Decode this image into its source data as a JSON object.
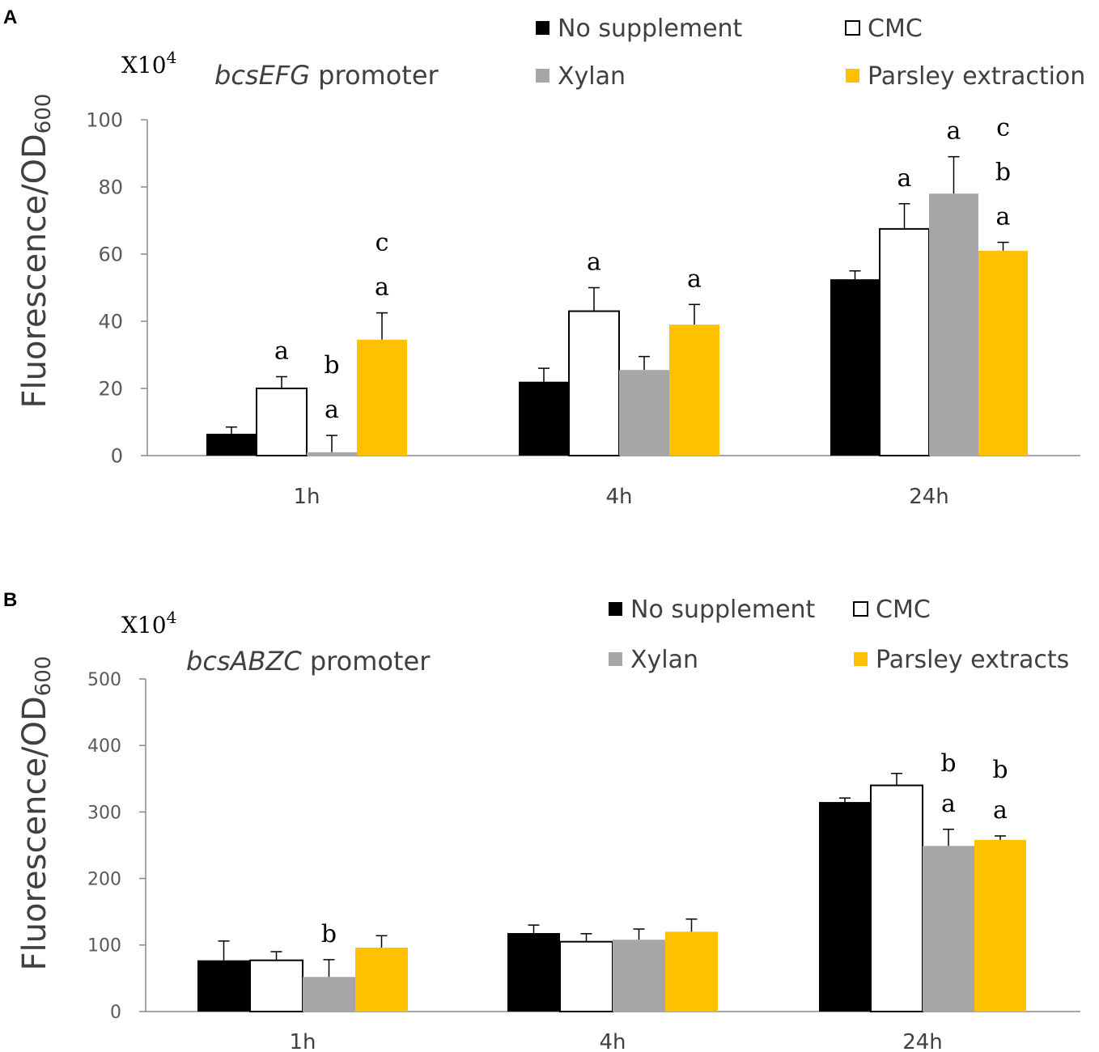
{
  "panels": [
    {
      "letter": "A"
    },
    {
      "letter": "B"
    }
  ],
  "chart_data": [
    {
      "type": "bar",
      "panel": "A",
      "title": "bcsEFG promoter",
      "title_italic": "bcsEFG",
      "title_rest": " promoter",
      "multiplier": "X10",
      "multiplier_exp": "4",
      "ylabel": "Fluorescence/OD",
      "ylabel_sub": "600",
      "ylim": [
        0,
        100
      ],
      "yticks": [
        "0",
        "20",
        "40",
        "60",
        "80",
        "100"
      ],
      "categories": [
        "1h",
        "4h",
        "24h"
      ],
      "legend": [
        "No supplement",
        "CMC",
        "Xylan",
        "Parsley extraction"
      ],
      "series": [
        {
          "name": "No supplement",
          "color": "#000000",
          "values": [
            6.5,
            22,
            52.5
          ],
          "errors": [
            2,
            4,
            2.5
          ]
        },
        {
          "name": "CMC",
          "color": "#ffffff",
          "values": [
            20,
            43,
            67.5
          ],
          "errors": [
            3.5,
            7,
            7.5
          ]
        },
        {
          "name": "Xylan",
          "color": "#a6a6a6",
          "values": [
            1,
            25.5,
            78
          ],
          "errors": [
            5,
            4,
            11
          ]
        },
        {
          "name": "Parsley extraction",
          "color": "#ffc000",
          "values": [
            34.5,
            39,
            61
          ],
          "errors": [
            8,
            6,
            2.5
          ]
        }
      ],
      "annotations": [
        {
          "category": 0,
          "series": 1,
          "lines": [
            "a"
          ]
        },
        {
          "category": 0,
          "series": 2,
          "lines": [
            "b",
            "a"
          ]
        },
        {
          "category": 0,
          "series": 3,
          "lines": [
            "c",
            "a"
          ]
        },
        {
          "category": 1,
          "series": 1,
          "lines": [
            "a"
          ]
        },
        {
          "category": 1,
          "series": 3,
          "lines": [
            "a"
          ]
        },
        {
          "category": 2,
          "series": 1,
          "lines": [
            "a"
          ]
        },
        {
          "category": 2,
          "series": 2,
          "lines": [
            "a"
          ]
        },
        {
          "category": 2,
          "series": 3,
          "lines": [
            "c",
            "b",
            "a"
          ]
        }
      ]
    },
    {
      "type": "bar",
      "panel": "B",
      "title": "bcsABZC promoter",
      "title_italic": "bcsABZC",
      "title_rest": " promoter",
      "multiplier": "X10",
      "multiplier_exp": "4",
      "ylabel": "Fluorescence/OD",
      "ylabel_sub": "600",
      "ylim": [
        0,
        500
      ],
      "yticks": [
        "0",
        "100",
        "200",
        "300",
        "400",
        "500"
      ],
      "categories": [
        "1h",
        "4h",
        "24h"
      ],
      "legend": [
        "No supplement",
        "CMC",
        "Xylan",
        "Parsley extracts"
      ],
      "series": [
        {
          "name": "No supplement",
          "color": "#000000",
          "values": [
            77,
            118,
            315
          ],
          "errors": [
            29,
            12,
            6
          ]
        },
        {
          "name": "CMC",
          "color": "#ffffff",
          "values": [
            77,
            105,
            340
          ],
          "errors": [
            13,
            12,
            18
          ]
        },
        {
          "name": "Xylan",
          "color": "#a6a6a6",
          "values": [
            52,
            108,
            249
          ],
          "errors": [
            26,
            16,
            25
          ]
        },
        {
          "name": "Parsley extracts",
          "color": "#ffc000",
          "values": [
            96,
            120,
            258
          ],
          "errors": [
            18,
            19,
            6
          ]
        }
      ],
      "annotations": [
        {
          "category": 0,
          "series": 2,
          "lines": [
            "b"
          ]
        },
        {
          "category": 2,
          "series": 2,
          "lines": [
            "b",
            "a"
          ]
        },
        {
          "category": 2,
          "series": 3,
          "lines": [
            "b",
            "a"
          ]
        }
      ]
    }
  ]
}
